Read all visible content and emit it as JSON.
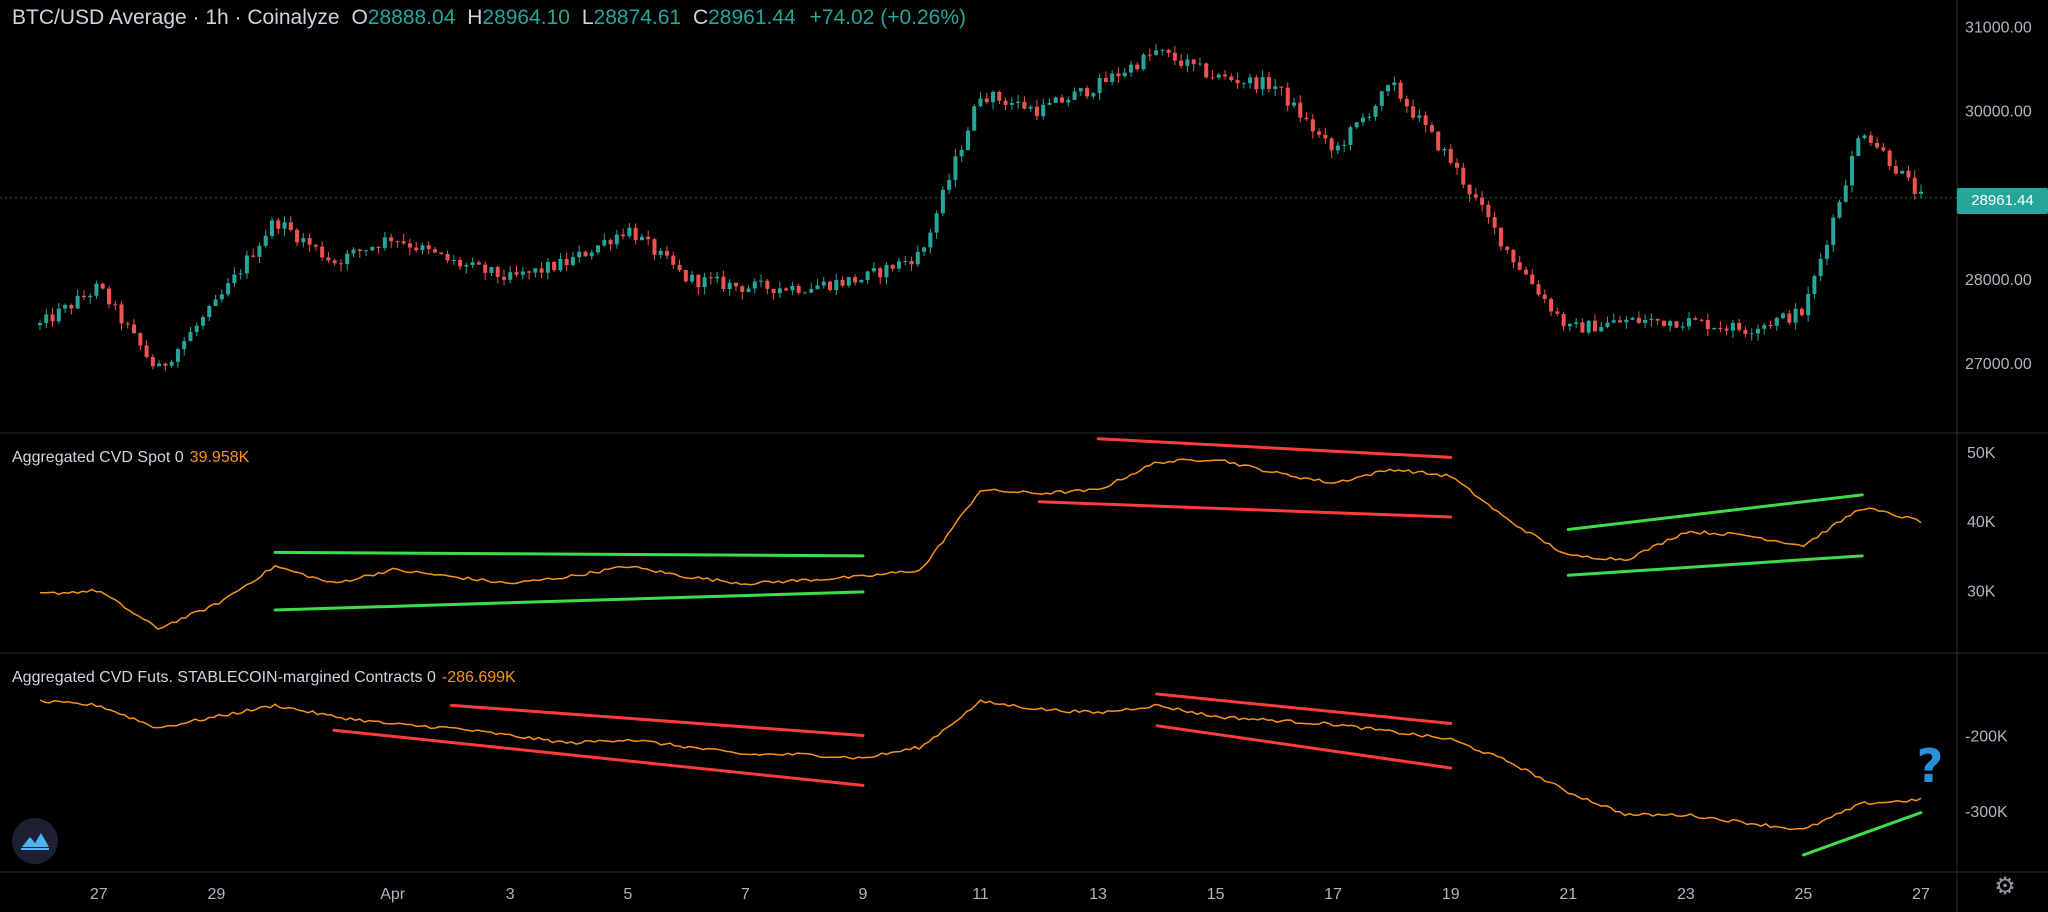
{
  "legend": {
    "symbol": "BTC/USD Average · 1h · Coinalyze",
    "open_label": "O",
    "open": "28888.04",
    "high_label": "H",
    "high": "28964.10",
    "low_label": "L",
    "low": "28874.61",
    "close_label": "C",
    "close": "28961.44",
    "change": "+74.02 (+0.26%)"
  },
  "price_tag": "28961.44",
  "studies": [
    {
      "name": "Aggregated CVD Spot 0",
      "value": "39.958K"
    },
    {
      "name": "Aggregated CVD Futs. STABLECOIN-margined Contracts 0",
      "value": "-286.699K"
    }
  ],
  "annotation_text": "?",
  "colors": {
    "background": "#000000",
    "candle_up": "#26a69a",
    "candle_down": "#ef5350",
    "cvd_line": "#f7931a",
    "trend_red": "#ff3b3b",
    "trend_green": "#3ddc4a",
    "annotation": "#2a8ed8"
  },
  "icons": {
    "logo": "coinalyze-logo-icon",
    "settings": "gear-icon"
  },
  "chart_data": [
    {
      "type": "candlestick",
      "title": "BTC/USD Average · 1h · Coinalyze",
      "x_ticks": [
        "27",
        "29",
        "Apr",
        "3",
        "5",
        "7",
        "9",
        "11",
        "13",
        "15",
        "17",
        "19",
        "21",
        "23",
        "25",
        "27"
      ],
      "x_range": [
        "Mar 26",
        "Apr 27"
      ],
      "y_ticks": [
        "31000.00",
        "30000.00",
        "28000.00",
        "27000.00"
      ],
      "ylim": [
        26500,
        31100
      ],
      "last_price": 28961.44,
      "series": [
        {
          "name": "BTC/USD",
          "x": [
            "Mar 26",
            "Mar 27",
            "Mar 28",
            "Mar 29",
            "Mar 30",
            "Mar 31",
            "Apr 1",
            "Apr 2",
            "Apr 3",
            "Apr 4",
            "Apr 5",
            "Apr 6",
            "Apr 7",
            "Apr 8",
            "Apr 9",
            "Apr 10",
            "Apr 11",
            "Apr 12",
            "Apr 13",
            "Apr 14",
            "Apr 15",
            "Apr 16",
            "Apr 17",
            "Apr 18",
            "Apr 19",
            "Apr 20",
            "Apr 21",
            "Apr 22",
            "Apr 23",
            "Apr 24",
            "Apr 25",
            "Apr 26",
            "Apr 27"
          ],
          "values": [
            27450,
            27900,
            26900,
            27700,
            28700,
            28200,
            28500,
            28200,
            28000,
            28200,
            28600,
            28000,
            27900,
            27900,
            28000,
            28300,
            30200,
            30000,
            30300,
            30700,
            30400,
            30300,
            29500,
            30300,
            29400,
            28300,
            27400,
            27500,
            27500,
            27400,
            27600,
            29800,
            28960
          ]
        }
      ]
    },
    {
      "type": "line",
      "title": "Aggregated CVD Spot 0",
      "x_range": [
        "Mar 26",
        "Apr 27"
      ],
      "y_ticks": [
        "50K",
        "40K",
        "30K"
      ],
      "ylim": [
        22000,
        52000
      ],
      "series": [
        {
          "name": "Aggregated CVD Spot 0",
          "x": [
            "Mar 26",
            "Mar 27",
            "Mar 28",
            "Mar 29",
            "Mar 30",
            "Mar 31",
            "Apr 1",
            "Apr 2",
            "Apr 3",
            "Apr 4",
            "Apr 5",
            "Apr 6",
            "Apr 7",
            "Apr 8",
            "Apr 9",
            "Apr 10",
            "Apr 11",
            "Apr 12",
            "Apr 13",
            "Apr 14",
            "Apr 15",
            "Apr 16",
            "Apr 17",
            "Apr 18",
            "Apr 19",
            "Apr 20",
            "Apr 21",
            "Apr 22",
            "Apr 23",
            "Apr 24",
            "Apr 25",
            "Apr 26",
            "Apr 27"
          ],
          "values": [
            29500,
            30000,
            24500,
            28000,
            33500,
            31000,
            33000,
            32000,
            31000,
            32000,
            33500,
            32000,
            31000,
            31500,
            32000,
            33000,
            44500,
            44000,
            44500,
            48500,
            49000,
            47000,
            45500,
            47500,
            46500,
            40000,
            35000,
            34500,
            38500,
            38000,
            36500,
            42000,
            40000
          ]
        }
      ],
      "annotations": [
        {
          "color": "red",
          "from": [
            "Apr 13",
            51900
          ],
          "to": [
            "Apr 19",
            49200
          ]
        },
        {
          "color": "red",
          "from": [
            "Apr 12",
            42800
          ],
          "to": [
            "Apr 19",
            40600
          ]
        },
        {
          "color": "green",
          "from": [
            "Mar 30",
            35500
          ],
          "to": [
            "Apr 9",
            35000
          ]
        },
        {
          "color": "green",
          "from": [
            "Mar 30",
            27200
          ],
          "to": [
            "Apr 9",
            29800
          ]
        },
        {
          "color": "green",
          "from": [
            "Apr 21",
            38800
          ],
          "to": [
            "Apr 26",
            43800
          ]
        },
        {
          "color": "green",
          "from": [
            "Apr 21",
            32200
          ],
          "to": [
            "Apr 26",
            35000
          ]
        }
      ]
    },
    {
      "type": "line",
      "title": "Aggregated CVD Futs. STABLECOIN-margined Contracts 0",
      "x_range": [
        "Mar 26",
        "Apr 27"
      ],
      "y_ticks": [
        "-200K",
        "-300K"
      ],
      "ylim": [
        -370000,
        -100000
      ],
      "series": [
        {
          "name": "Aggregated CVD Futs. STABLECOIN-margined Contracts 0",
          "x": [
            "Mar 26",
            "Mar 27",
            "Mar 28",
            "Mar 29",
            "Mar 30",
            "Mar 31",
            "Apr 1",
            "Apr 2",
            "Apr 3",
            "Apr 4",
            "Apr 5",
            "Apr 6",
            "Apr 7",
            "Apr 8",
            "Apr 9",
            "Apr 10",
            "Apr 11",
            "Apr 12",
            "Apr 13",
            "Apr 14",
            "Apr 15",
            "Apr 16",
            "Apr 17",
            "Apr 18",
            "Apr 19",
            "Apr 20",
            "Apr 21",
            "Apr 22",
            "Apr 23",
            "Apr 24",
            "Apr 25",
            "Apr 26",
            "Apr 27"
          ],
          "values": [
            -155000,
            -160000,
            -190000,
            -175000,
            -160000,
            -175000,
            -185000,
            -190000,
            -200000,
            -210000,
            -205000,
            -215000,
            -225000,
            -225000,
            -230000,
            -215000,
            -155000,
            -165000,
            -170000,
            -160000,
            -175000,
            -180000,
            -185000,
            -195000,
            -205000,
            -235000,
            -275000,
            -305000,
            -305000,
            -315000,
            -325000,
            -290000,
            -285000
          ]
        }
      ],
      "annotations": [
        {
          "color": "red",
          "from": [
            "Apr 2",
            -160000
          ],
          "to": [
            "Apr 9",
            -200000
          ]
        },
        {
          "color": "red",
          "from": [
            "Mar 31",
            -193000
          ],
          "to": [
            "Apr 9",
            -266000
          ]
        },
        {
          "color": "red",
          "from": [
            "Apr 14",
            -145000
          ],
          "to": [
            "Apr 19",
            -184000
          ]
        },
        {
          "color": "red",
          "from": [
            "Apr 14",
            -187000
          ],
          "to": [
            "Apr 19",
            -243000
          ]
        },
        {
          "color": "green",
          "from": [
            "Apr 25",
            -358000
          ],
          "to": [
            "Apr 27",
            -302000
          ]
        }
      ]
    }
  ]
}
